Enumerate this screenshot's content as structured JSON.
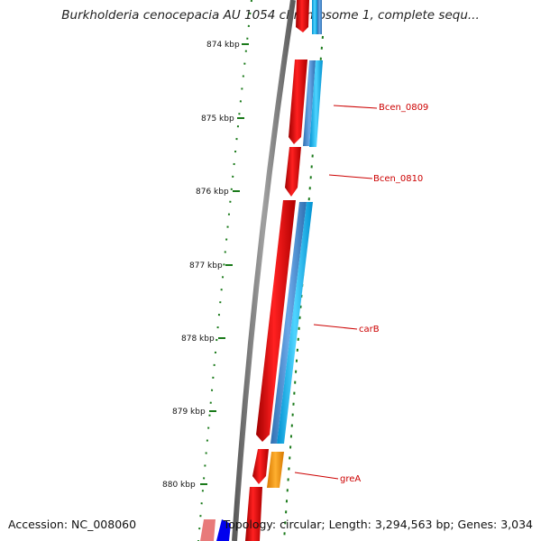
{
  "title": "Burkholderia cenocepacia AU 1054 chromosome 1, complete sequ...",
  "footer": {
    "accession_label": "Accession: NC_008060",
    "info_label": "Topology: circular; Length: 3,294,563 bp; Genes: 3,034"
  },
  "ruler": {
    "ticks": [
      "874 kbp",
      "875 kbp",
      "876 kbp",
      "877 kbp",
      "878 kbp",
      "879 kbp",
      "880 kbp"
    ]
  },
  "gene_labels": [
    "Bcen_0809",
    "Bcen_0810",
    "carB",
    "greA"
  ],
  "colors": {
    "backbone": "#808080",
    "cds": "#ff0000",
    "gene_blue": "#4a8fd8",
    "gene_cyan": "#00b8f0",
    "rrna_orange": "#ff9900",
    "label_red": "#cc0000",
    "tick_green": "#1a7a1a"
  }
}
